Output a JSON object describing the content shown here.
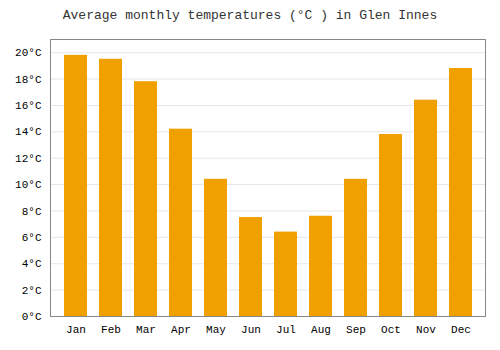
{
  "chart_data": {
    "type": "bar",
    "title": "Average monthly temperatures (°C ) in Glen Innes",
    "categories": [
      "Jan",
      "Feb",
      "Mar",
      "Apr",
      "May",
      "Jun",
      "Jul",
      "Aug",
      "Sep",
      "Oct",
      "Nov",
      "Dec"
    ],
    "values": [
      19.8,
      19.5,
      17.8,
      14.2,
      10.4,
      7.5,
      6.4,
      7.6,
      10.4,
      13.8,
      16.4,
      18.8
    ],
    "color": "#F0A000",
    "ylim": [
      0,
      21
    ],
    "yticks": [
      {
        "value": 0,
        "label": "0°C"
      },
      {
        "value": 2,
        "label": "2°C"
      },
      {
        "value": 4,
        "label": "4°C"
      },
      {
        "value": 6,
        "label": "6°C"
      },
      {
        "value": 8,
        "label": "8°C"
      },
      {
        "value": 10,
        "label": "10°C"
      },
      {
        "value": 12,
        "label": "12°C"
      },
      {
        "value": 14,
        "label": "14°C"
      },
      {
        "value": 16,
        "label": "16°C"
      },
      {
        "value": 18,
        "label": "18°C"
      },
      {
        "value": 20,
        "label": "20°C"
      }
    ],
    "grid": true
  }
}
